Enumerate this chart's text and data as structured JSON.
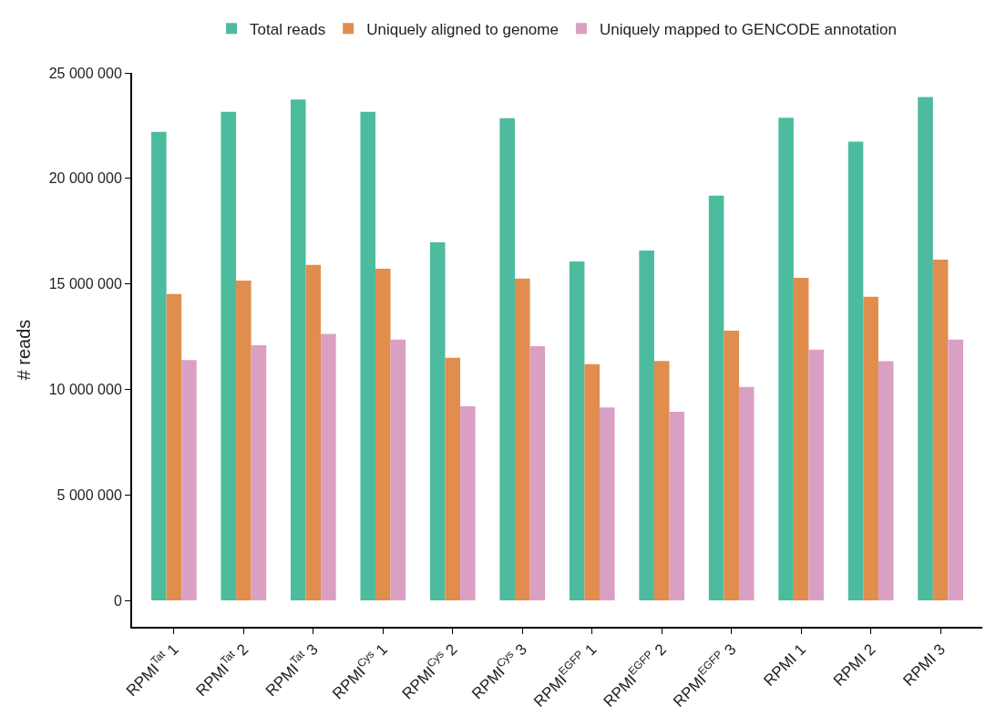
{
  "chart_data": {
    "type": "bar",
    "ylabel": "# reads",
    "categories": [
      "RPMI$^{Tat}$ 1",
      "RPMI$^{Tat}$ 2",
      "RPMI$^{Tat}$ 3",
      "RPMI$^{Cys}$ 1",
      "RPMI$^{Cys}$ 2",
      "RPMI$^{Cys}$ 3",
      "RPMI$^{EGFP}$ 1",
      "RPMI$^{EGFP}$ 2",
      "RPMI$^{EGFP}$ 3",
      "RPMI 1",
      "RPMI 2",
      "RPMI 3"
    ],
    "series": [
      {
        "name": "Total reads",
        "color": "#4dbb9d",
        "values": [
          22200000,
          23150000,
          23740000,
          23150000,
          16970000,
          22850000,
          16060000,
          16580000,
          19180000,
          22870000,
          21740000,
          23860000
        ]
      },
      {
        "name": "Uniquely aligned to genome",
        "color": "#e08d4e",
        "values": [
          14520000,
          15160000,
          15900000,
          15720000,
          11500000,
          15250000,
          11200000,
          11350000,
          12780000,
          15290000,
          14390000,
          16150000
        ]
      },
      {
        "name": "Uniquely mapped to GENCODE annotation",
        "color": "#daa0c3",
        "values": [
          11390000,
          12090000,
          12630000,
          12360000,
          9200000,
          12050000,
          9140000,
          8940000,
          10120000,
          11890000,
          11340000,
          12360000
        ]
      }
    ],
    "ylim": [
      -1250000,
      25000000
    ],
    "yticks": [
      {
        "value": 0,
        "label": "0"
      },
      {
        "value": 5000000,
        "label": "5 000 000"
      },
      {
        "value": 10000000,
        "label": "10 000 000"
      },
      {
        "value": 15000000,
        "label": "15 000 000"
      },
      {
        "value": 20000000,
        "label": "20 000 000"
      },
      {
        "value": 25000000,
        "label": "25 000 000"
      }
    ],
    "legend": "top"
  }
}
